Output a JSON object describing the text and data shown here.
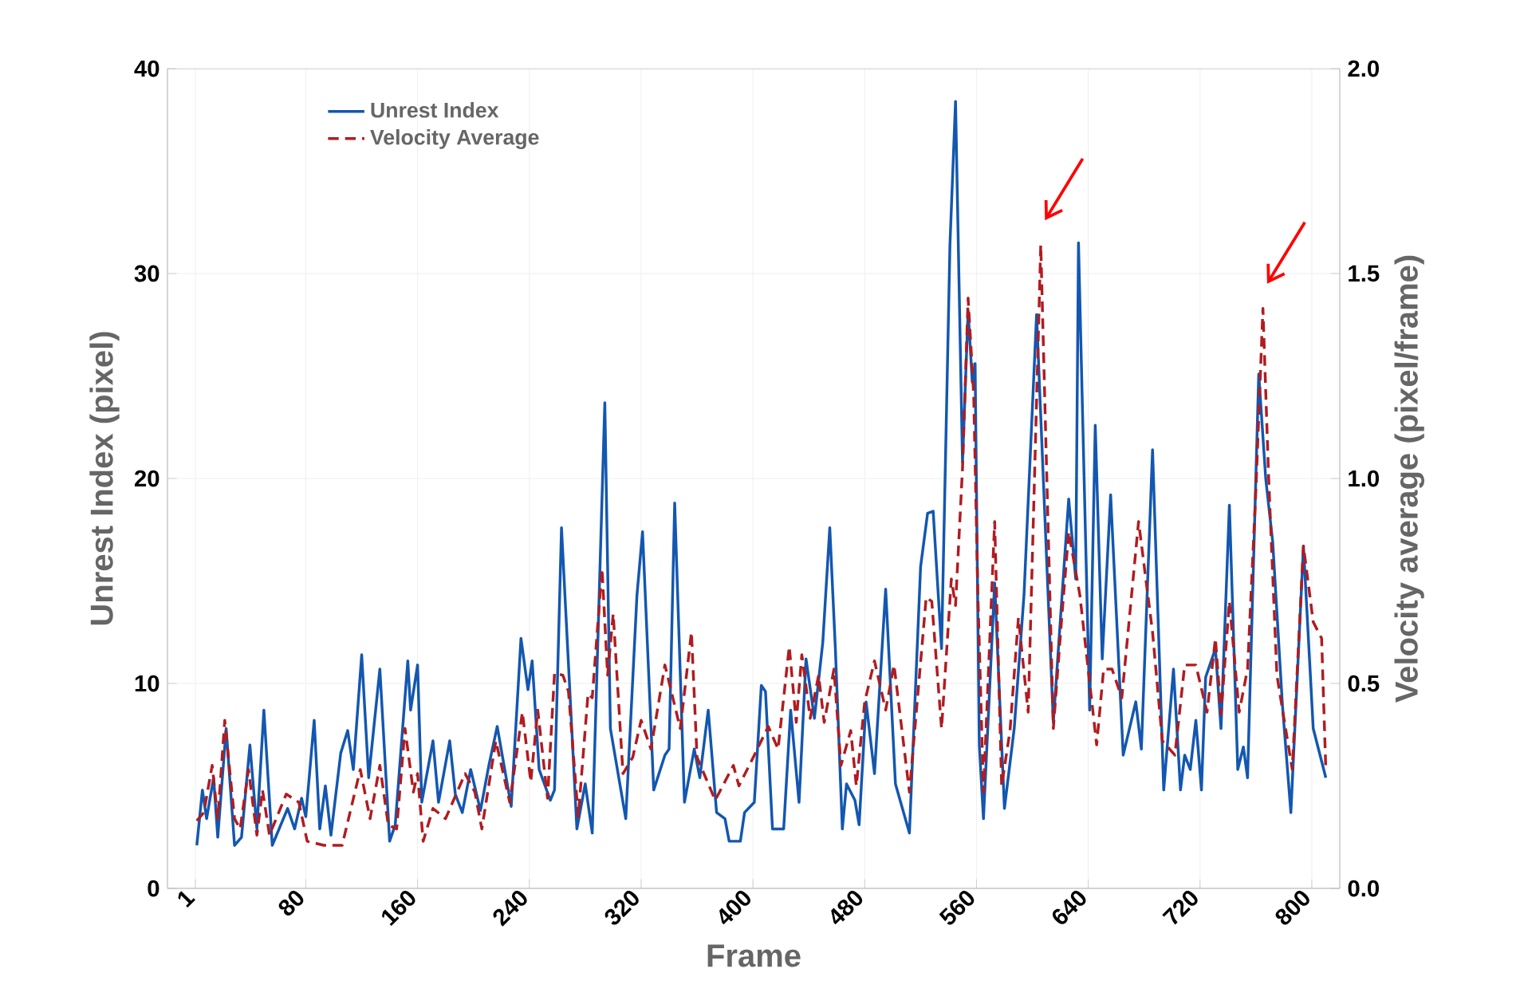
{
  "chart_data": {
    "type": "line",
    "xlabel": "Frame",
    "ylabel": "Unrest Index (pixel)",
    "y2label": "Velocity average (pixel/frame)",
    "xlim": [
      -19,
      820
    ],
    "xticks": [
      1,
      80,
      160,
      240,
      320,
      400,
      480,
      560,
      640,
      720,
      800
    ],
    "ylim": [
      0,
      40
    ],
    "yticks": [
      0,
      10,
      20,
      30,
      40
    ],
    "y2lim": [
      0,
      2
    ],
    "y2ticks": [
      {
        "value": 0,
        "label": "0.0"
      },
      0.5,
      {
        "value": 1,
        "label": "1.0"
      },
      1.5,
      {
        "value": 2,
        "label": "2.0"
      }
    ],
    "grid": true,
    "legend": "top left",
    "series": [
      {
        "name": "Unrest Index",
        "color": "#1357b0",
        "axis": "y",
        "line_style": "solid",
        "x": [
          2,
          6,
          9,
          14,
          17,
          23,
          29,
          34,
          40,
          45,
          50,
          56,
          67,
          72,
          77,
          80,
          86,
          90,
          94,
          98,
          105,
          110,
          114,
          120,
          125,
          133,
          140,
          144,
          153,
          155,
          160,
          163,
          171,
          175,
          183,
          187,
          192,
          198,
          205,
          211,
          217,
          227,
          234,
          239,
          242,
          247,
          255,
          258,
          263,
          274,
          280,
          285,
          294,
          298,
          309,
          317,
          321,
          329,
          337,
          340,
          344,
          351,
          358,
          362,
          368,
          374,
          380,
          383,
          391,
          394,
          401,
          406,
          409,
          414,
          422,
          427,
          433,
          438,
          444,
          450,
          455,
          459,
          464,
          467,
          473,
          476,
          481,
          487,
          495,
          502,
          512,
          520,
          525,
          529,
          535,
          541,
          545,
          550,
          554,
          557,
          559,
          562,
          565,
          573,
          580,
          587,
          594,
          603,
          615,
          626,
          631,
          633,
          641,
          645,
          650,
          656,
          665,
          674,
          678,
          686,
          694,
          701,
          706,
          709,
          713,
          717,
          721,
          724,
          731,
          735,
          741,
          747,
          751,
          754,
          762,
          767,
          772,
          779,
          785,
          794,
          801,
          810
        ],
        "values": [
          2.1,
          4.8,
          3.4,
          5.4,
          2.5,
          7.8,
          2.1,
          2.5,
          7.0,
          2.9,
          8.7,
          2.1,
          3.9,
          2.9,
          4.4,
          3.5,
          8.2,
          2.9,
          5.0,
          2.6,
          6.6,
          7.7,
          5.8,
          11.4,
          5.4,
          10.7,
          2.3,
          3.1,
          11.1,
          8.7,
          10.9,
          4.2,
          7.2,
          4.2,
          7.2,
          4.6,
          3.7,
          5.8,
          3.8,
          6.0,
          7.9,
          4.0,
          12.2,
          9.7,
          11.1,
          5.8,
          4.3,
          4.8,
          17.6,
          2.9,
          5.1,
          2.7,
          23.7,
          7.8,
          3.4,
          14.3,
          17.4,
          4.8,
          6.5,
          6.8,
          18.8,
          4.2,
          6.8,
          5.4,
          8.7,
          3.7,
          3.4,
          2.3,
          2.3,
          3.7,
          4.2,
          9.9,
          9.6,
          2.9,
          2.9,
          8.7,
          4.2,
          11.2,
          8.3,
          12.0,
          17.6,
          11.7,
          2.9,
          5.1,
          4.3,
          3.1,
          9.1,
          5.6,
          14.6,
          5.1,
          2.7,
          15.7,
          18.3,
          18.4,
          11.7,
          31.4,
          38.4,
          20.8,
          28.2,
          24.7,
          25.6,
          7.0,
          3.4,
          14.9,
          3.9,
          7.8,
          14.3,
          28.0,
          8.1,
          19.0,
          15.1,
          31.5,
          8.7,
          22.6,
          11.2,
          19.2,
          6.5,
          9.1,
          6.8,
          21.4,
          4.8,
          10.7,
          4.8,
          6.5,
          5.8,
          8.2,
          4.8,
          10.3,
          11.7,
          7.8,
          18.7,
          5.8,
          6.9,
          5.4,
          25.1,
          20.0,
          16.9,
          8.9,
          3.7,
          16.7,
          7.8,
          5.4
        ]
      },
      {
        "name": "Velocity Average",
        "color": "#b01c20",
        "axis": "y2",
        "line_style": "dashed",
        "x": [
          2,
          7,
          13,
          17,
          22,
          29,
          33,
          39,
          45,
          49,
          54,
          66,
          75,
          81,
          93,
          106,
          119,
          126,
          133,
          139,
          145,
          151,
          157,
          160,
          164,
          171,
          180,
          194,
          201,
          206,
          216,
          226,
          235,
          241,
          246,
          253,
          258,
          264,
          268,
          275,
          282,
          285,
          292,
          296,
          300,
          307,
          314,
          320,
          327,
          337,
          348,
          356,
          360,
          373,
          386,
          390,
          401,
          411,
          418,
          426,
          431,
          435,
          441,
          447,
          451,
          458,
          463,
          470,
          474,
          480,
          487,
          495,
          501,
          512,
          524,
          528,
          535,
          542,
          545,
          550,
          554,
          558,
          561,
          565,
          573,
          578,
          584,
          590,
          597,
          606,
          615,
          621,
          626,
          634,
          646,
          651,
          657,
          664,
          676,
          686,
          693,
          702,
          709,
          717,
          725,
          731,
          735,
          741,
          748,
          754,
          760,
          765,
          769,
          775,
          786,
          794,
          801,
          807,
          810
        ],
        "values": [
          0.165,
          0.185,
          0.3,
          0.17,
          0.41,
          0.17,
          0.145,
          0.29,
          0.13,
          0.24,
          0.13,
          0.23,
          0.21,
          0.115,
          0.105,
          0.105,
          0.29,
          0.17,
          0.3,
          0.155,
          0.145,
          0.39,
          0.235,
          0.28,
          0.115,
          0.195,
          0.17,
          0.28,
          0.235,
          0.145,
          0.36,
          0.21,
          0.43,
          0.26,
          0.435,
          0.22,
          0.525,
          0.52,
          0.48,
          0.175,
          0.475,
          0.465,
          0.78,
          0.52,
          0.67,
          0.28,
          0.32,
          0.41,
          0.34,
          0.545,
          0.39,
          0.625,
          0.32,
          0.215,
          0.3,
          0.25,
          0.325,
          0.395,
          0.34,
          0.59,
          0.405,
          0.57,
          0.415,
          0.52,
          0.405,
          0.535,
          0.3,
          0.385,
          0.25,
          0.455,
          0.555,
          0.435,
          0.545,
          0.235,
          0.71,
          0.7,
          0.39,
          0.755,
          0.69,
          1.025,
          1.44,
          1.205,
          0.715,
          0.235,
          0.895,
          0.25,
          0.385,
          0.66,
          0.43,
          1.57,
          0.39,
          0.66,
          0.87,
          0.715,
          0.35,
          0.535,
          0.535,
          0.465,
          0.895,
          0.625,
          0.36,
          0.325,
          0.545,
          0.545,
          0.43,
          0.61,
          0.425,
          0.7,
          0.43,
          0.535,
          0.975,
          1.415,
          1.01,
          0.52,
          0.29,
          0.835,
          0.65,
          0.61,
          0.29
        ]
      }
    ]
  }
}
